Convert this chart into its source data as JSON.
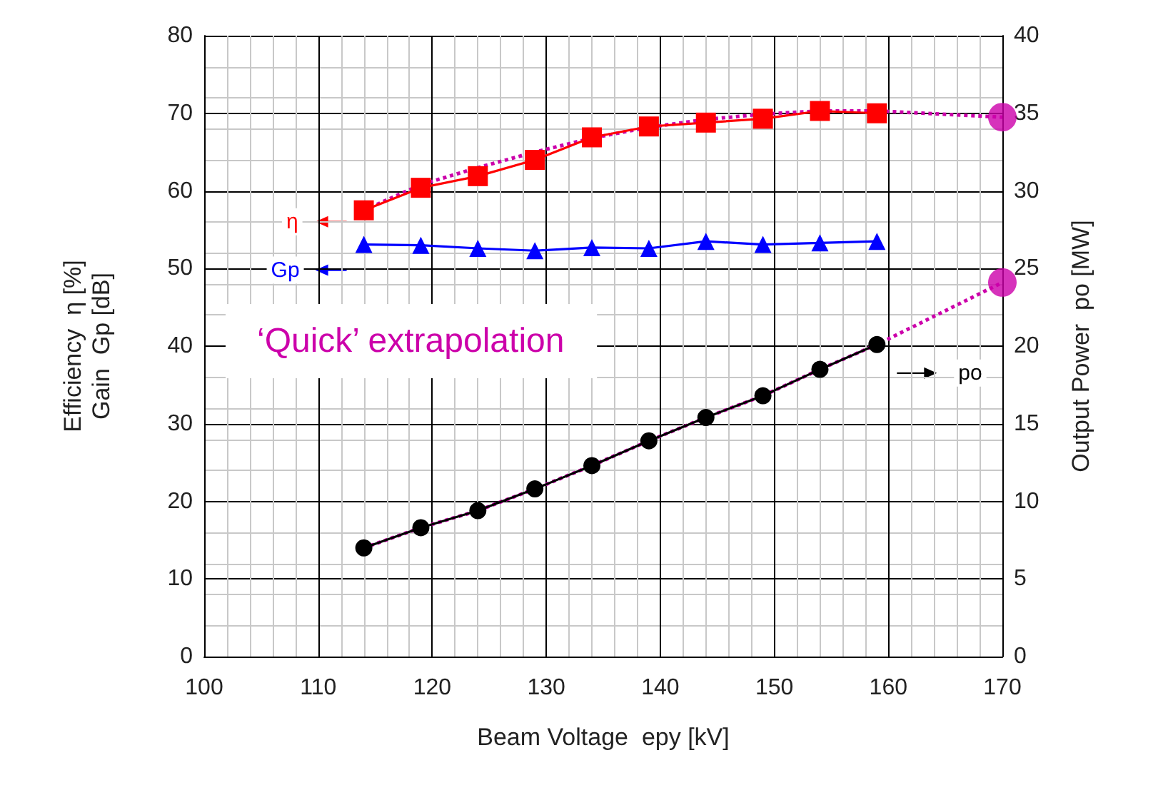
{
  "chart_data": {
    "type": "line",
    "xlabel": "Beam Voltage  epy [kV]",
    "ylabel": "Efficiency  η [%]\nGain  Gp [dB]",
    "y2label": "Output Power  po [MW]",
    "xlim": [
      100,
      170
    ],
    "xticks": [
      100,
      110,
      120,
      130,
      140,
      150,
      160,
      170
    ],
    "ylim": [
      0,
      80
    ],
    "yticks": [
      0,
      10,
      20,
      30,
      40,
      50,
      60,
      70,
      80
    ],
    "y2lim": [
      0,
      40
    ],
    "y2ticks": [
      0,
      5,
      10,
      15,
      20,
      25,
      30,
      35,
      40
    ],
    "grid": true,
    "legend": "left",
    "annotations": [
      "‘Quick’ extrapolation"
    ],
    "series": [
      {
        "name": "η",
        "color": "#ff0000",
        "marker": "square",
        "x": [
          114,
          119,
          124,
          129,
          134,
          139,
          144,
          149,
          154,
          159
        ],
        "values": [
          57.5,
          60.4,
          61.9,
          64.0,
          66.9,
          68.3,
          68.8,
          69.3,
          70.3,
          70.0
        ]
      },
      {
        "name": "Gp",
        "color": "#0000ff",
        "marker": "triangle",
        "x": [
          114,
          119,
          124,
          129,
          134,
          139,
          144,
          149,
          154,
          159
        ],
        "values": [
          53.1,
          53.0,
          52.6,
          52.3,
          52.7,
          52.6,
          53.5,
          53.1,
          53.3,
          53.5
        ]
      },
      {
        "name": "po",
        "color": "#000000",
        "marker": "circle",
        "axis": "y2",
        "x": [
          114,
          119,
          124,
          129,
          134,
          139,
          144,
          149,
          154,
          159
        ],
        "values": [
          7.0,
          8.3,
          9.4,
          10.8,
          12.3,
          13.9,
          15.4,
          16.8,
          18.5,
          20.1
        ]
      },
      {
        "color": "#cc00aa",
        "marker": "none",
        "line_style": "dotted",
        "x": [
          114,
          119,
          124,
          129,
          134,
          139,
          144,
          149,
          154,
          159,
          170
        ],
        "values": [
          57.5,
          60.8,
          63.0,
          65.0,
          66.8,
          68.2,
          69.2,
          69.9,
          70.3,
          70.3,
          69.5
        ]
      },
      {
        "color": "#cc00aa",
        "marker": "none",
        "line_style": "dotted",
        "axis": "y2",
        "x": [
          114,
          119,
          124,
          129,
          134,
          139,
          144,
          149,
          154,
          159,
          170
        ],
        "values": [
          7.0,
          8.3,
          9.4,
          10.8,
          12.3,
          13.9,
          15.4,
          16.8,
          18.5,
          20.1,
          24.1
        ]
      },
      {
        "type": "scatter",
        "color": "#cc00aa",
        "marker": "circle",
        "x": [
          170
        ],
        "values": [
          69.5
        ]
      },
      {
        "type": "scatter",
        "color": "#cc00aa",
        "marker": "circle",
        "axis": "y2",
        "x": [
          170
        ],
        "values": [
          24.1
        ]
      }
    ]
  }
}
